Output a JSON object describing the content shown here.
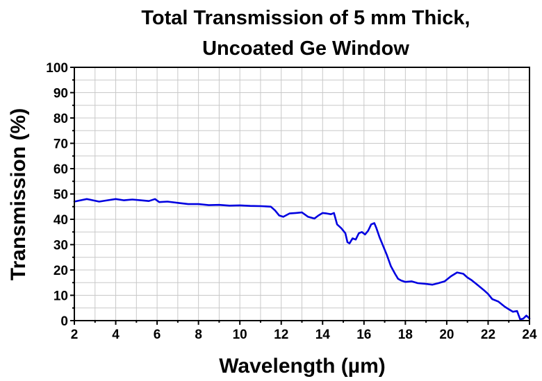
{
  "chart_data": {
    "type": "line",
    "title_line1": "Total Transmission of 5 mm Thick,",
    "title_line2": "Uncoated Ge Window",
    "xlabel": "Wavelength (µm)",
    "ylabel": "Transmission (%)",
    "xlim": [
      2,
      24
    ],
    "ylim": [
      0,
      100
    ],
    "xticks": [
      2,
      4,
      6,
      8,
      10,
      12,
      14,
      16,
      18,
      20,
      22,
      24
    ],
    "yticks": [
      0,
      10,
      20,
      30,
      40,
      50,
      60,
      70,
      80,
      90,
      100
    ],
    "grid": true,
    "line_color": "#0000e0",
    "series": [
      {
        "x": [
          2.0,
          2.3,
          2.6,
          2.9,
          3.2,
          3.6,
          4.0,
          4.4,
          4.8,
          5.2,
          5.6,
          5.9,
          6.1,
          6.5,
          7.0,
          7.5,
          8.0,
          8.5,
          9.0,
          9.5,
          10.0,
          10.5,
          11.0,
          11.5,
          11.7,
          11.9,
          12.1,
          12.4,
          12.7,
          13.0,
          13.3,
          13.6,
          13.8,
          14.0,
          14.2,
          14.4,
          14.55,
          14.7,
          14.9,
          15.1,
          15.2,
          15.3,
          15.45,
          15.6,
          15.75,
          15.9,
          16.05,
          16.2,
          16.35,
          16.5,
          16.6,
          16.75,
          16.9,
          17.1,
          17.3,
          17.5,
          17.65,
          17.8,
          18.0,
          18.3,
          18.6,
          19.0,
          19.3,
          19.6,
          19.9,
          20.2,
          20.5,
          20.8,
          21.0,
          21.2,
          21.5,
          21.8,
          22.0,
          22.2,
          22.5,
          22.8,
          23.0,
          23.2,
          23.4,
          23.55,
          23.7,
          23.85,
          24.0
        ],
        "y": [
          47.0,
          47.5,
          48.0,
          47.5,
          47.0,
          47.5,
          48.0,
          47.5,
          47.8,
          47.5,
          47.2,
          48.0,
          46.8,
          47.0,
          46.5,
          46.0,
          46.0,
          45.6,
          45.7,
          45.4,
          45.5,
          45.3,
          45.2,
          45.0,
          43.5,
          41.5,
          41.0,
          42.3,
          42.5,
          42.7,
          41.0,
          40.3,
          41.5,
          42.5,
          42.3,
          42.0,
          42.5,
          38.0,
          36.5,
          34.5,
          31.0,
          30.5,
          32.5,
          32.0,
          34.5,
          35.0,
          34.0,
          35.5,
          38.0,
          38.5,
          36.5,
          33.0,
          30.0,
          26.0,
          21.5,
          18.5,
          16.5,
          15.8,
          15.3,
          15.5,
          14.8,
          14.5,
          14.2,
          14.8,
          15.5,
          17.5,
          19.0,
          18.5,
          17.0,
          16.0,
          14.0,
          12.0,
          10.5,
          8.5,
          7.5,
          5.5,
          4.5,
          3.5,
          3.8,
          0.5,
          0.8,
          2.0,
          0.8
        ]
      }
    ]
  }
}
